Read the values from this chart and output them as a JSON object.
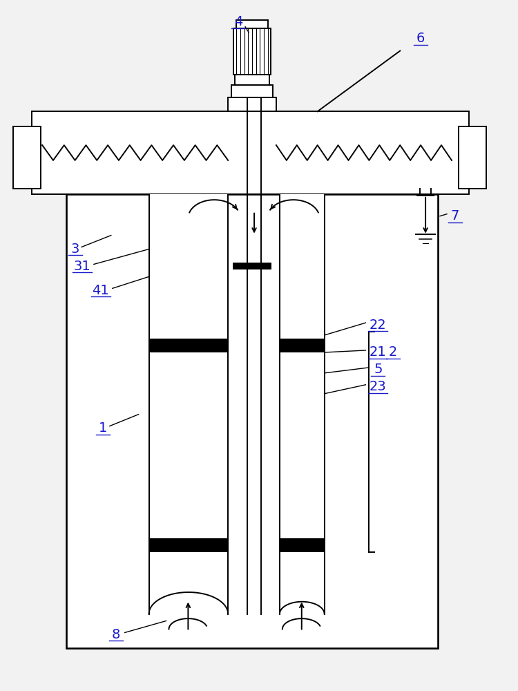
{
  "bg_color": "#f2f2f2",
  "line_color": "#000000",
  "label_color": "#1a1acc",
  "fig_width": 7.5,
  "fig_height": 10.0,
  "lw": 1.4
}
